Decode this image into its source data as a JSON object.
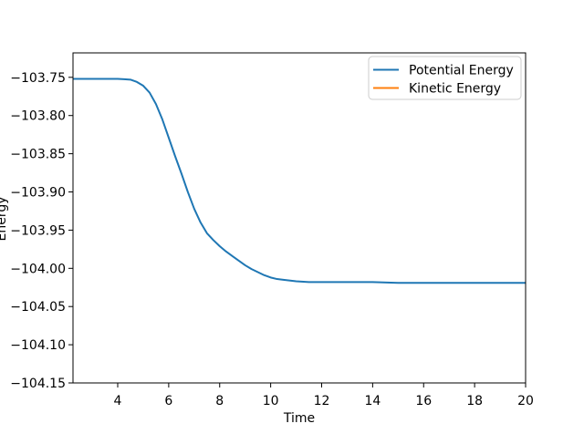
{
  "figure": {
    "background_color": "#ffffff",
    "spine_color": "#000000"
  },
  "chart_data": {
    "type": "line",
    "title": "",
    "xlabel": "Time",
    "ylabel": "Energy",
    "xlim": [
      2.246,
      20
    ],
    "ylim": [
      -104.15,
      -103.718
    ],
    "grid": false,
    "xticks": [
      4,
      6,
      8,
      10,
      12,
      14,
      16,
      18,
      20
    ],
    "xtick_labels": [
      "4",
      "6",
      "8",
      "10",
      "12",
      "14",
      "16",
      "18",
      "20"
    ],
    "yticks": [
      -103.75,
      -103.8,
      -103.85,
      -103.9,
      -103.95,
      -104.0,
      -104.05,
      -104.1,
      -104.15
    ],
    "ytick_labels": [
      "−103.75",
      "−103.80",
      "−103.85",
      "−103.90",
      "−103.95",
      "−104.00",
      "−104.05",
      "−104.10",
      "−104.15"
    ],
    "legend": {
      "position": "upper right",
      "border_color": "#cccccc",
      "background_color": "#ffffff"
    },
    "series": [
      {
        "name": "Potential Energy",
        "color": "#1f77b4",
        "visible_in_plot": true,
        "x": [
          2.25,
          3.0,
          3.5,
          4.0,
          4.25,
          4.5,
          4.75,
          5.0,
          5.25,
          5.5,
          5.75,
          6.0,
          6.25,
          6.5,
          6.75,
          7.0,
          7.25,
          7.5,
          7.75,
          8.0,
          8.25,
          8.5,
          8.75,
          9.0,
          9.25,
          9.5,
          9.75,
          10.0,
          10.25,
          10.5,
          11.0,
          11.5,
          12.0,
          13.0,
          14.0,
          15.0,
          16.0,
          17.0,
          18.0,
          19.0,
          20.0
        ],
        "y": [
          -103.752,
          -103.752,
          -103.752,
          -103.752,
          -103.7525,
          -103.753,
          -103.756,
          -103.761,
          -103.77,
          -103.785,
          -103.805,
          -103.829,
          -103.853,
          -103.876,
          -103.9,
          -103.922,
          -103.94,
          -103.954,
          -103.963,
          -103.971,
          -103.978,
          -103.984,
          -103.99,
          -103.996,
          -104.001,
          -104.005,
          -104.009,
          -104.012,
          -104.014,
          -104.015,
          -104.017,
          -104.018,
          -104.018,
          -104.018,
          -104.018,
          -104.019,
          -104.019,
          -104.019,
          -104.019,
          -104.019,
          -104.019
        ]
      },
      {
        "name": "Kinetic Energy",
        "color": "#ff7f0e",
        "visible_in_plot": false,
        "x": [],
        "y": []
      }
    ]
  }
}
